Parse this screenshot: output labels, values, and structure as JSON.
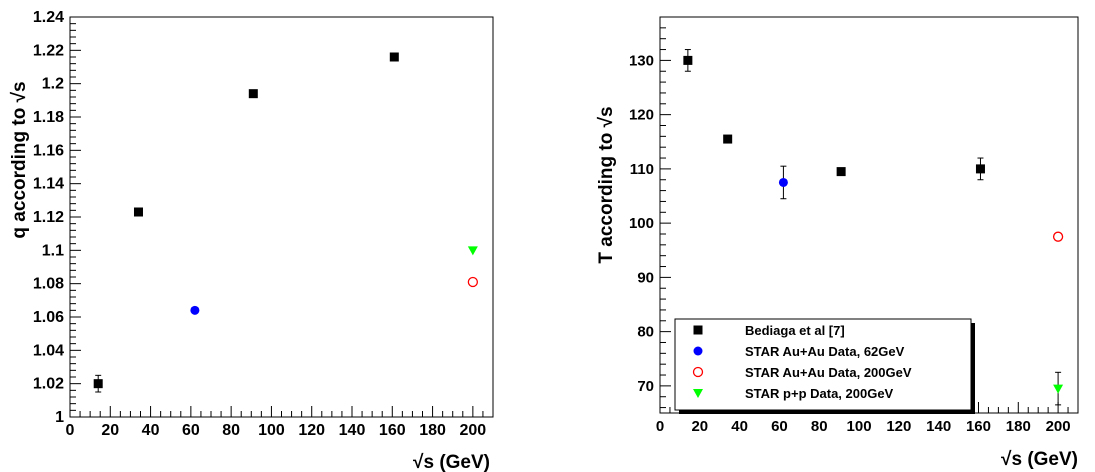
{
  "chart_data": [
    {
      "type": "scatter",
      "title": "",
      "xlabel": "√s (GeV)",
      "ylabel": "q according to √s",
      "xlim": [
        0,
        210
      ],
      "ylim": [
        1.0,
        1.24
      ],
      "x_ticks": [
        0,
        20,
        40,
        60,
        80,
        100,
        120,
        140,
        160,
        180,
        200
      ],
      "y_ticks": [
        1,
        1.02,
        1.04,
        1.06,
        1.08,
        1.1,
        1.12,
        1.14,
        1.16,
        1.18,
        1.2,
        1.22,
        1.24
      ],
      "series": [
        {
          "name": "Bediaga et al [7]",
          "marker": "square",
          "color": "#000000",
          "points": [
            {
              "x": 14,
              "y": 1.02,
              "err": 0.005
            },
            {
              "x": 34,
              "y": 1.123,
              "err": 0
            },
            {
              "x": 91,
              "y": 1.194,
              "err": 0
            },
            {
              "x": 161,
              "y": 1.216,
              "err": 0
            }
          ]
        },
        {
          "name": "STAR Au+Au Data, 62GeV",
          "marker": "circle",
          "color": "#0000ff",
          "points": [
            {
              "x": 62,
              "y": 1.064,
              "err": 0
            }
          ]
        },
        {
          "name": "STAR Au+Au Data, 200GeV",
          "marker": "open-circle",
          "color": "#ff0000",
          "points": [
            {
              "x": 200,
              "y": 1.081,
              "err": 0
            }
          ]
        },
        {
          "name": "STAR p+p Data, 200GeV",
          "marker": "triangle-down",
          "color": "#00ff00",
          "points": [
            {
              "x": 200,
              "y": 1.1,
              "err": 0
            }
          ]
        }
      ]
    },
    {
      "type": "scatter",
      "title": "",
      "xlabel": "√s (GeV)",
      "ylabel": "T according to √s",
      "xlim": [
        0,
        210
      ],
      "ylim": [
        65,
        138
      ],
      "x_ticks": [
        0,
        20,
        40,
        60,
        80,
        100,
        120,
        140,
        160,
        180,
        200
      ],
      "y_ticks": [
        70,
        80,
        90,
        100,
        110,
        120,
        130
      ],
      "legend_position": "bottom-left",
      "legend": [
        "Bediaga et al [7]",
        "STAR Au+Au Data, 62GeV",
        "STAR Au+Au Data, 200GeV",
        "STAR p+p Data, 200GeV"
      ],
      "series": [
        {
          "name": "Bediaga et al [7]",
          "marker": "square",
          "color": "#000000",
          "points": [
            {
              "x": 14,
              "y": 130,
              "err": 2
            },
            {
              "x": 34,
              "y": 115.5,
              "err": 0
            },
            {
              "x": 91,
              "y": 109.5,
              "err": 0
            },
            {
              "x": 161,
              "y": 110,
              "err": 2
            }
          ]
        },
        {
          "name": "STAR Au+Au Data, 62GeV",
          "marker": "circle",
          "color": "#0000ff",
          "points": [
            {
              "x": 62,
              "y": 107.5,
              "err": 3
            }
          ]
        },
        {
          "name": "STAR Au+Au Data, 200GeV",
          "marker": "open-circle",
          "color": "#ff0000",
          "points": [
            {
              "x": 200,
              "y": 97.5,
              "err": 0
            }
          ]
        },
        {
          "name": "STAR p+p Data, 200GeV",
          "marker": "triangle-down",
          "color": "#00ff00",
          "points": [
            {
              "x": 200,
              "y": 69.5,
              "err": 3
            }
          ]
        }
      ]
    }
  ]
}
